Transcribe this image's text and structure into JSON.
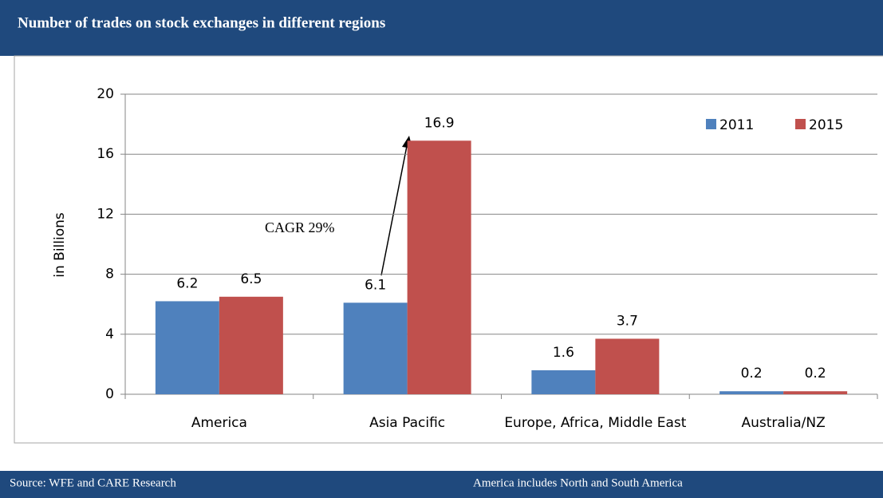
{
  "chart_data": {
    "type": "bar",
    "title": "Number of trades on stock exchanges in different regions",
    "ylabel": "in Billions",
    "categories": [
      "America",
      "Asia Pacific",
      "Europe, Africa, Middle East",
      "Australia/NZ"
    ],
    "series": [
      {
        "name": "2011",
        "color": "#4f81bd",
        "values": [
          6.2,
          6.1,
          1.6,
          0.2
        ]
      },
      {
        "name": "2015",
        "color": "#c0504d",
        "values": [
          6.5,
          16.9,
          3.7,
          0.2
        ]
      }
    ],
    "ylim": [
      0,
      20
    ],
    "yticks": [
      0,
      4,
      8,
      12,
      16,
      20
    ],
    "grid": true,
    "legend": "top-right",
    "annotation": "CAGR 29%",
    "source": "Source: WFE and CARE Research",
    "note": "America includes North and South America"
  }
}
